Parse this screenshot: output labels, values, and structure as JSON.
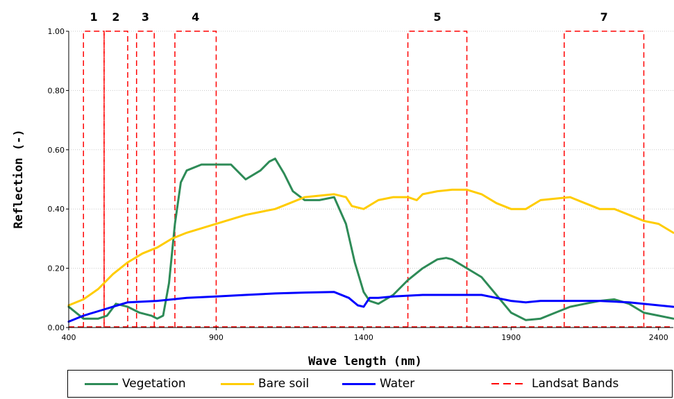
{
  "chart_data": {
    "type": "line",
    "title": "",
    "xlabel": "Wave length (nm)",
    "ylabel": "Reflection (-)",
    "xlim": [
      400,
      2450
    ],
    "ylim": [
      0,
      1.0
    ],
    "x_ticks": [
      400,
      900,
      1400,
      1900,
      2400
    ],
    "x_tick_labels": [
      "400",
      "900",
      "1400",
      "1900",
      "2400"
    ],
    "y_ticks": [
      0,
      0.2,
      0.4,
      0.6,
      0.8,
      1.0
    ],
    "y_tick_labels": [
      "0.00",
      "0.20",
      "0.40",
      "0.60",
      "0.80",
      "1.00"
    ],
    "legend_position": "bottom",
    "series": [
      {
        "name": "Vegetation",
        "color": "#2e8b57",
        "x": [
          400,
          450,
          500,
          530,
          560,
          600,
          640,
          680,
          700,
          720,
          740,
          760,
          780,
          800,
          850,
          880,
          900,
          950,
          1000,
          1050,
          1080,
          1100,
          1130,
          1160,
          1200,
          1250,
          1300,
          1340,
          1370,
          1400,
          1420,
          1450,
          1500,
          1550,
          1600,
          1650,
          1680,
          1700,
          1750,
          1800,
          1850,
          1900,
          1950,
          2000,
          2050,
          2100,
          2150,
          2200,
          2250,
          2300,
          2350,
          2400,
          2450
        ],
        "y": [
          0.07,
          0.03,
          0.03,
          0.04,
          0.08,
          0.07,
          0.05,
          0.04,
          0.03,
          0.04,
          0.15,
          0.35,
          0.49,
          0.53,
          0.55,
          0.55,
          0.55,
          0.55,
          0.5,
          0.53,
          0.56,
          0.57,
          0.52,
          0.46,
          0.43,
          0.43,
          0.44,
          0.35,
          0.22,
          0.12,
          0.09,
          0.08,
          0.11,
          0.16,
          0.2,
          0.23,
          0.235,
          0.23,
          0.2,
          0.17,
          0.11,
          0.05,
          0.025,
          0.03,
          0.05,
          0.07,
          0.08,
          0.09,
          0.095,
          0.08,
          0.05,
          0.04,
          0.03
        ]
      },
      {
        "name": "Bare soil",
        "color": "#ffcc00",
        "x": [
          400,
          450,
          500,
          550,
          600,
          650,
          700,
          750,
          800,
          900,
          1000,
          1100,
          1150,
          1200,
          1250,
          1300,
          1340,
          1360,
          1400,
          1450,
          1500,
          1550,
          1580,
          1600,
          1650,
          1700,
          1750,
          1800,
          1850,
          1900,
          1950,
          2000,
          2050,
          2100,
          2150,
          2200,
          2250,
          2300,
          2350,
          2400,
          2450
        ],
        "y": [
          0.075,
          0.095,
          0.13,
          0.18,
          0.22,
          0.25,
          0.27,
          0.3,
          0.32,
          0.35,
          0.38,
          0.4,
          0.42,
          0.44,
          0.445,
          0.45,
          0.44,
          0.41,
          0.4,
          0.43,
          0.44,
          0.44,
          0.43,
          0.45,
          0.46,
          0.465,
          0.465,
          0.45,
          0.42,
          0.4,
          0.4,
          0.43,
          0.435,
          0.44,
          0.42,
          0.4,
          0.4,
          0.38,
          0.36,
          0.35,
          0.32
        ]
      },
      {
        "name": "Water",
        "color": "#0000ff",
        "x": [
          400,
          450,
          500,
          550,
          600,
          700,
          800,
          900,
          1000,
          1100,
          1200,
          1300,
          1350,
          1380,
          1400,
          1420,
          1450,
          1500,
          1600,
          1700,
          1800,
          1850,
          1900,
          1950,
          2000,
          2100,
          2200,
          2300,
          2400,
          2450
        ],
        "y": [
          0.02,
          0.04,
          0.055,
          0.07,
          0.085,
          0.09,
          0.1,
          0.105,
          0.11,
          0.115,
          0.118,
          0.12,
          0.1,
          0.075,
          0.07,
          0.1,
          0.1,
          0.105,
          0.11,
          0.11,
          0.11,
          0.1,
          0.09,
          0.085,
          0.09,
          0.09,
          0.09,
          0.085,
          0.075,
          0.07
        ]
      },
      {
        "name": "Landsat Bands",
        "color": "#ff0000",
        "style": "dashed"
      }
    ],
    "bands": [
      {
        "label": "1",
        "x0": 450,
        "x1": 520,
        "y1": 1.0
      },
      {
        "label": "2",
        "x0": 520,
        "x1": 600,
        "y1": 1.0
      },
      {
        "label": "3",
        "x0": 630,
        "x1": 690,
        "y1": 1.0
      },
      {
        "label": "4",
        "x0": 760,
        "x1": 900,
        "y1": 1.0
      },
      {
        "label": "5",
        "x0": 1550,
        "x1": 1750,
        "y1": 1.0
      },
      {
        "label": "7",
        "x0": 2080,
        "x1": 2350,
        "y1": 1.0
      }
    ]
  }
}
